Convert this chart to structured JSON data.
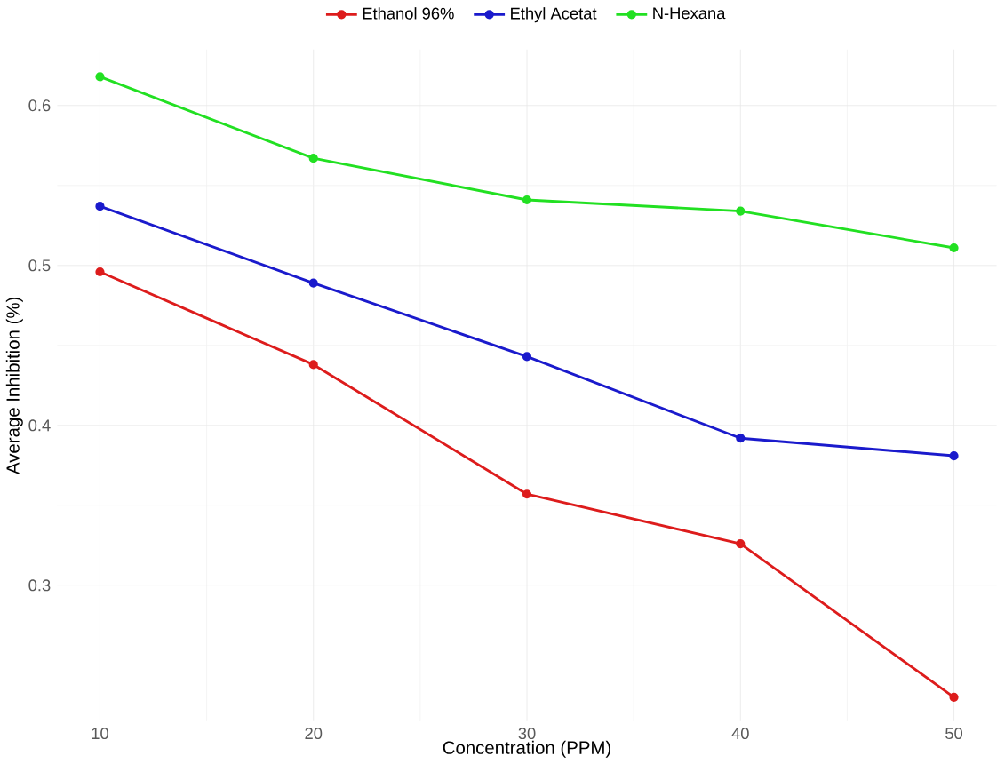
{
  "chart_data": {
    "type": "line",
    "xlabel": "Concentration (PPM)",
    "ylabel": "Average Inhibition (%)",
    "x": [
      10,
      20,
      30,
      40,
      50
    ],
    "series": [
      {
        "name": "Ethanol 96%",
        "color": "#dd1c1c",
        "values": [
          0.496,
          0.438,
          0.357,
          0.326,
          0.23
        ]
      },
      {
        "name": "Ethyl Acetat",
        "color": "#1a1acc",
        "values": [
          0.537,
          0.489,
          0.443,
          0.392,
          0.381
        ]
      },
      {
        "name": "N-Hexana",
        "color": "#22e022",
        "values": [
          0.618,
          0.567,
          0.541,
          0.534,
          0.511
        ]
      }
    ],
    "xlim": [
      8,
      52
    ],
    "ylim": [
      0.215,
      0.635
    ],
    "xticks": [
      10,
      20,
      30,
      40,
      50
    ],
    "yticks": [
      0.3,
      0.4,
      0.5,
      0.6
    ],
    "grid": true,
    "legend": "top",
    "marker": "circle",
    "line_style": "solid"
  }
}
